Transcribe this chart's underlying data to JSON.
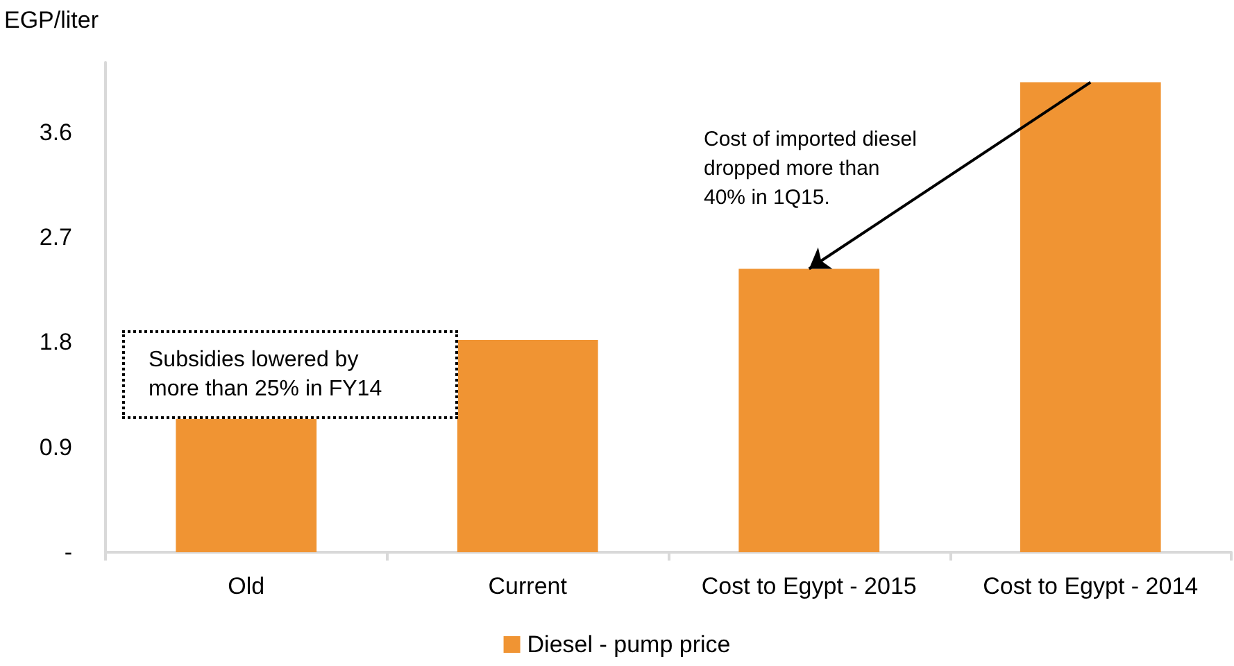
{
  "chart_data": {
    "type": "bar",
    "ylabel": "EGP/liter",
    "categories": [
      "Old",
      "Current",
      "Cost to Egypt - 2015",
      "Cost to Egypt - 2014"
    ],
    "series": [
      {
        "name": "Diesel - pump price",
        "color": "#f09433",
        "values": [
          1.15,
          1.82,
          2.43,
          4.03
        ]
      }
    ],
    "ylim": [
      0,
      4.2
    ],
    "yticks": [
      {
        "value": 0,
        "label": "-"
      },
      0.9,
      1.8,
      2.7,
      3.6
    ],
    "grid": false,
    "legend": "bottom",
    "annotations": [
      "Subsidies lowered by\nmore than 25% in FY14",
      {
        "text": "Cost of imported diesel\ndropped more than\n40% in 1Q15.",
        "x": "Cost to Egypt - 2015",
        "y": 2.43
      }
    ]
  }
}
